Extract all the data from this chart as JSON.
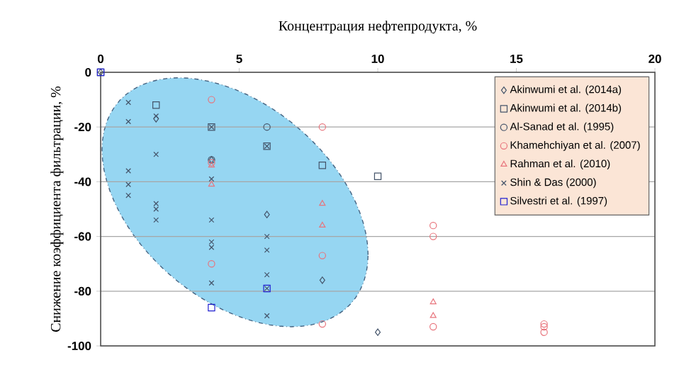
{
  "chart_data": {
    "type": "scatter",
    "xlabel": "Концентрация нефтепродукта, %",
    "ylabel": "Снижение коэффициента фильтрации, %",
    "xlim": [
      0,
      20
    ],
    "ylim": [
      -100,
      0
    ],
    "xticks": [
      0,
      5,
      10,
      15,
      20
    ],
    "yticks": [
      -100,
      -80,
      -60,
      -40,
      -20,
      0
    ],
    "grid": "y",
    "legend": "top right",
    "series": [
      {
        "name": "Akinwumi et al. (2014a)",
        "color": "#44546a",
        "marker": "diamond",
        "x": [
          0,
          2,
          4,
          6,
          8,
          10
        ],
        "values": [
          0,
          -17,
          -32,
          -52,
          -76,
          -95
        ]
      },
      {
        "name": "Akinwumi et al. (2014b)",
        "color": "#44546a",
        "marker": "square",
        "x": [
          0,
          2,
          4,
          6,
          8,
          10
        ],
        "values": [
          0,
          -12,
          -20,
          -27,
          -34,
          -38
        ]
      },
      {
        "name": "Al-Sanad et al. (1995)",
        "color": "#44546a",
        "marker": "circle",
        "x": [
          4,
          6
        ],
        "values": [
          -32,
          -20
        ]
      },
      {
        "name": "Khamehchiyan et al. (2007)",
        "color": "#e8747c",
        "marker": "circle",
        "x": [
          4,
          4,
          4,
          8,
          8,
          8,
          12,
          12,
          12,
          16,
          16,
          16
        ],
        "values": [
          -10,
          -33,
          -70,
          -20,
          -67,
          -92,
          -56,
          -60,
          -93,
          -92,
          -93,
          -95
        ]
      },
      {
        "name": "Rahman et al. (2010)",
        "color": "#e8747c",
        "marker": "triangle",
        "x": [
          4,
          4,
          8,
          8,
          12,
          12
        ],
        "values": [
          -34,
          -41,
          -48,
          -56,
          -84,
          -89
        ]
      },
      {
        "name": "Shin & Das (2000)",
        "color": "#44546a",
        "marker": "cross",
        "x": [
          1,
          1,
          1,
          1,
          1,
          2,
          2,
          2,
          2,
          2,
          4,
          4,
          4,
          4,
          4,
          4,
          6,
          6,
          6,
          6,
          6,
          6
        ],
        "values": [
          -11,
          -18,
          -36,
          -41,
          -45,
          -16,
          -30,
          -48,
          -50,
          -54,
          -20,
          -39,
          -54,
          -62,
          -64,
          -77,
          -27,
          -60,
          -65,
          -74,
          -79,
          -89
        ]
      },
      {
        "name": "Silvestri et al. (1997)",
        "color": "#2020d0",
        "marker": "square",
        "x": [
          0,
          4,
          6
        ],
        "values": [
          0,
          -86,
          -79
        ]
      }
    ]
  }
}
